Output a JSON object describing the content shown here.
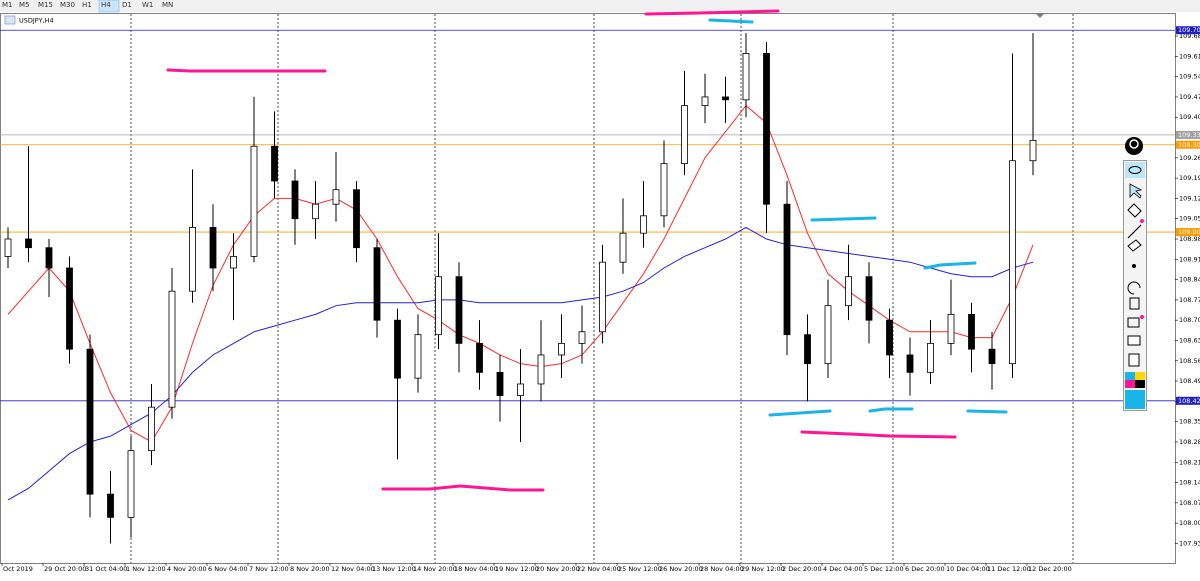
{
  "toolbar": {
    "timeframes": [
      "M1",
      "M5",
      "M15",
      "M30",
      "H1",
      "H4",
      "D1",
      "W1",
      "MN"
    ],
    "active_index": 5
  },
  "chart_data": {
    "type": "candlestick",
    "title": "USDJPY,H4",
    "categories": [
      "Oct 2019",
      null,
      "29 Oct 20:00",
      null,
      "31 Oct 04:00",
      null,
      "1 Nov 12:00",
      null,
      "4 Nov 20:00",
      null,
      "6 Nov 04:00",
      null,
      "7 Nov 12:00",
      null,
      "8 Nov 20:00",
      null,
      "12 Nov 04:00",
      null,
      "13 Nov 12:00",
      null,
      "14 Nov 20:00",
      null,
      "18 Nov 04:00",
      null,
      "19 Nov 12:00",
      null,
      "20 Nov 20:00",
      null,
      "22 Nov 04:00",
      null,
      "25 Nov 12:00",
      null,
      "26 Nov 20:00",
      null,
      "28 Nov 04:00",
      null,
      "29 Nov 12:00",
      null,
      "2 Dec 20:00",
      null,
      "4 Dec 04:00",
      null,
      "5 Dec 12:00",
      null,
      "6 Dec 20:00",
      null,
      "10 Dec 04:00",
      null,
      "11 Dec 12:00",
      null,
      "12 Dec 20:00"
    ],
    "open": [
      108.92,
      108.98,
      108.95,
      108.88,
      108.6,
      108.1,
      108.02,
      108.25,
      108.4,
      108.8,
      109.02,
      108.88,
      108.92,
      109.3,
      109.18,
      109.05,
      109.1,
      109.15,
      108.95,
      108.7,
      108.5,
      108.65,
      108.85,
      108.62,
      108.52,
      108.44,
      108.48,
      108.58,
      108.62,
      108.66,
      108.9,
      109.0,
      109.06,
      109.24,
      109.44,
      109.47,
      109.46,
      109.62,
      109.1,
      108.65,
      108.55,
      108.75,
      108.85,
      108.7,
      108.58,
      108.52,
      108.62,
      108.72,
      108.6,
      108.55,
      109.25
    ],
    "high": [
      109.02,
      109.3,
      108.98,
      108.92,
      108.65,
      108.18,
      108.3,
      108.48,
      108.88,
      109.22,
      109.1,
      109.0,
      109.47,
      109.42,
      109.22,
      109.18,
      109.28,
      109.18,
      108.98,
      108.74,
      108.72,
      109.0,
      108.9,
      108.7,
      108.58,
      108.6,
      108.7,
      108.72,
      108.75,
      108.96,
      109.12,
      109.18,
      109.32,
      109.56,
      109.55,
      109.54,
      109.69,
      109.66,
      109.18,
      108.72,
      108.84,
      108.96,
      108.9,
      108.74,
      108.64,
      108.7,
      108.84,
      108.76,
      108.66,
      109.62,
      109.69
    ],
    "low": [
      108.88,
      108.9,
      108.78,
      108.55,
      108.02,
      107.93,
      107.95,
      108.2,
      108.36,
      108.76,
      108.8,
      108.7,
      108.9,
      109.12,
      108.96,
      108.98,
      109.04,
      108.9,
      108.64,
      108.22,
      108.45,
      108.6,
      108.52,
      108.46,
      108.35,
      108.28,
      108.42,
      108.5,
      108.55,
      108.62,
      108.86,
      108.95,
      109.02,
      109.2,
      109.38,
      109.38,
      109.4,
      109.0,
      108.58,
      108.42,
      108.5,
      108.7,
      108.62,
      108.5,
      108.44,
      108.48,
      108.58,
      108.52,
      108.46,
      108.5,
      109.2
    ],
    "close": [
      108.98,
      108.95,
      108.88,
      108.6,
      108.1,
      108.02,
      108.25,
      108.4,
      108.8,
      109.02,
      108.88,
      108.92,
      109.3,
      109.18,
      109.05,
      109.1,
      109.15,
      108.95,
      108.7,
      108.5,
      108.65,
      108.85,
      108.62,
      108.52,
      108.44,
      108.48,
      108.58,
      108.62,
      108.66,
      108.9,
      109.0,
      109.06,
      109.24,
      109.44,
      109.47,
      109.46,
      109.62,
      109.1,
      108.65,
      108.55,
      108.75,
      108.85,
      108.7,
      108.58,
      108.52,
      108.62,
      108.72,
      108.6,
      108.55,
      109.25,
      109.32
    ],
    "ma": [
      {
        "color": "#ff2a2a",
        "values": [
          108.72,
          108.8,
          108.88,
          108.8,
          108.62,
          108.45,
          108.32,
          108.28,
          108.4,
          108.62,
          108.82,
          108.96,
          109.06,
          109.12,
          109.12,
          109.1,
          109.12,
          109.08,
          108.98,
          108.85,
          108.74,
          108.7,
          108.65,
          108.62,
          108.58,
          108.55,
          108.54,
          108.55,
          108.58,
          108.66,
          108.76,
          108.86,
          108.98,
          109.12,
          109.26,
          109.35,
          109.44,
          109.38,
          109.2,
          109.0,
          108.86,
          108.8,
          108.75,
          108.7,
          108.66,
          108.66,
          108.66,
          108.64,
          108.64,
          108.78,
          108.96
        ]
      },
      {
        "color": "#2020e0",
        "values": [
          108.08,
          108.12,
          108.18,
          108.24,
          108.28,
          108.3,
          108.34,
          108.38,
          108.44,
          108.52,
          108.58,
          108.62,
          108.66,
          108.68,
          108.7,
          108.72,
          108.75,
          108.76,
          108.76,
          108.76,
          108.76,
          108.77,
          108.77,
          108.76,
          108.76,
          108.76,
          108.76,
          108.76,
          108.77,
          108.78,
          108.8,
          108.83,
          108.88,
          108.92,
          108.95,
          108.98,
          109.02,
          108.98,
          108.96,
          108.95,
          108.94,
          108.93,
          108.92,
          108.91,
          108.9,
          108.88,
          108.86,
          108.85,
          108.85,
          108.88,
          108.9
        ]
      }
    ],
    "levels": [
      {
        "value": 109.7,
        "label": "109.700",
        "color": "#2020c0"
      },
      {
        "value": 109.339,
        "label": "109.339",
        "color": "#a0a0a0"
      },
      {
        "value": 109.305,
        "label": "109.305",
        "color": "#ff9a00"
      },
      {
        "value": 109.004,
        "label": "109.004",
        "color": "#ff9a00"
      },
      {
        "value": 108.422,
        "label": "108.422",
        "color": "#2020c0"
      }
    ],
    "ylim": [
      107.866,
      109.756
    ],
    "yticks": [
      {
        "value": 109.68,
        "label": "109.680"
      },
      {
        "value": 109.61,
        "label": "109.610"
      },
      {
        "value": 109.54,
        "label": "109.540"
      },
      {
        "value": 109.47,
        "label": "109.470"
      },
      {
        "value": 109.4,
        "label": "109.400"
      },
      {
        "value": 109.26,
        "label": "109.260"
      },
      {
        "value": 109.19,
        "label": "109.190"
      },
      {
        "value": 109.12,
        "label": "109.120"
      },
      {
        "value": 109.05,
        "label": "109.050"
      },
      {
        "value": 108.98,
        "label": "108.980"
      },
      {
        "value": 108.91,
        "label": "108.910"
      },
      {
        "value": 108.84,
        "label": "108.840"
      },
      {
        "value": 108.77,
        "label": "108.770"
      },
      {
        "value": 108.7,
        "label": "108.700"
      },
      {
        "value": 108.63,
        "label": "108.630"
      },
      {
        "value": 108.56,
        "label": "108.560"
      },
      {
        "value": 108.49,
        "label": "108.490"
      },
      {
        "value": 108.42,
        "label": "108.420"
      },
      {
        "value": 108.35,
        "label": "108.350"
      },
      {
        "value": 108.28,
        "label": "108.280"
      },
      {
        "value": 108.21,
        "label": "108.210"
      },
      {
        "value": 108.14,
        "label": "108.140"
      },
      {
        "value": 108.07,
        "label": "108.070"
      },
      {
        "value": 108.0,
        "label": "108.000"
      },
      {
        "value": 107.93,
        "label": "107.930"
      }
    ],
    "bull_color": "#ffffff",
    "bear_color": "#000000",
    "grid": false
  }
}
